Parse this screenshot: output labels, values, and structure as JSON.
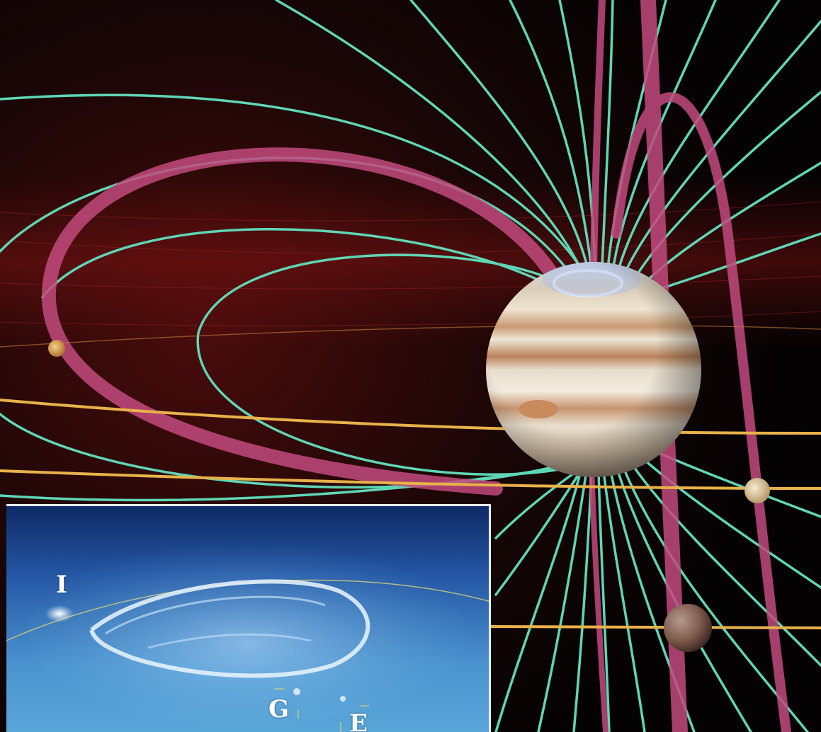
{
  "figure": {
    "subject": "jupiter-magnetosphere-with-moon-flux-tubes",
    "colors": {
      "background": "#050203",
      "field_lines": "#5fd6b6",
      "flux_tubes": "#c24a7e",
      "orbits": "#e8b24a",
      "torus_glow": "#8a1414",
      "aurora_inset": "#3c86c4"
    }
  },
  "inset": {
    "labels": {
      "io": "I",
      "ganymede": "G",
      "europa": "E"
    }
  }
}
